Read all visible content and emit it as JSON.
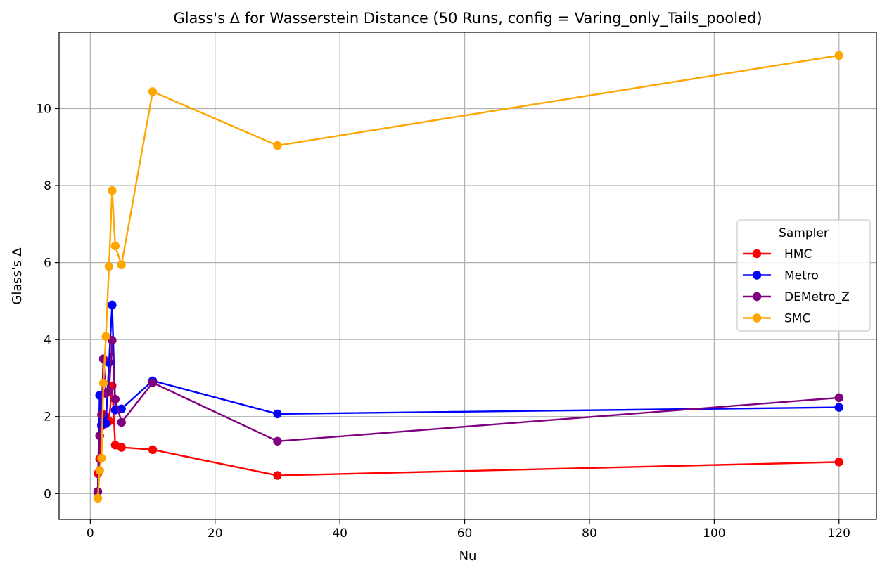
{
  "chart_data": {
    "type": "line",
    "title": "Glass's Δ for Wasserstein Distance (50 Runs, config = Varing_only_Tails_pooled)",
    "xlabel": "Nu",
    "ylabel": "Glass's Δ",
    "xlim": [
      -5,
      126
    ],
    "ylim": [
      -0.67,
      11.98
    ],
    "xticks": [
      0,
      20,
      40,
      60,
      80,
      100,
      120
    ],
    "yticks": [
      0,
      2,
      4,
      6,
      8,
      10
    ],
    "grid": true,
    "legend": {
      "title": "Sampler",
      "placement": "center-right"
    },
    "series": [
      {
        "name": "HMC",
        "color": "#ff0000",
        "x": [
          1.2,
          1.5,
          1.8,
          2.1,
          2.5,
          3,
          3.5,
          4,
          5,
          10,
          30,
          120
        ],
        "y": [
          0.52,
          0.9,
          1.75,
          2.05,
          2.0,
          1.88,
          2.8,
          1.26,
          1.2,
          1.14,
          0.47,
          0.82
        ]
      },
      {
        "name": "Metro",
        "color": "#0000ff",
        "x": [
          1.2,
          1.5,
          1.8,
          2.1,
          2.5,
          3,
          3.5,
          4,
          5,
          10,
          30,
          120
        ],
        "y": [
          0.05,
          2.55,
          1.78,
          2.0,
          1.82,
          3.4,
          4.9,
          2.17,
          2.2,
          2.93,
          2.07,
          2.24
        ]
      },
      {
        "name": "DEMetro_Z",
        "color": "#800080",
        "x": [
          1.2,
          1.5,
          1.8,
          2.1,
          2.5,
          3,
          3.5,
          4,
          5,
          10,
          30,
          120
        ],
        "y": [
          0.05,
          1.5,
          2.05,
          3.5,
          2.6,
          2.65,
          3.98,
          2.45,
          1.85,
          2.88,
          1.36,
          2.49
        ]
      },
      {
        "name": "SMC",
        "color": "#ffa500",
        "x": [
          1.2,
          1.5,
          1.8,
          2.1,
          2.5,
          3,
          3.5,
          4,
          5,
          10,
          30,
          120
        ],
        "y": [
          -0.12,
          0.6,
          0.92,
          2.87,
          4.08,
          5.9,
          7.87,
          6.43,
          5.94,
          10.44,
          9.04,
          11.38
        ]
      }
    ]
  }
}
